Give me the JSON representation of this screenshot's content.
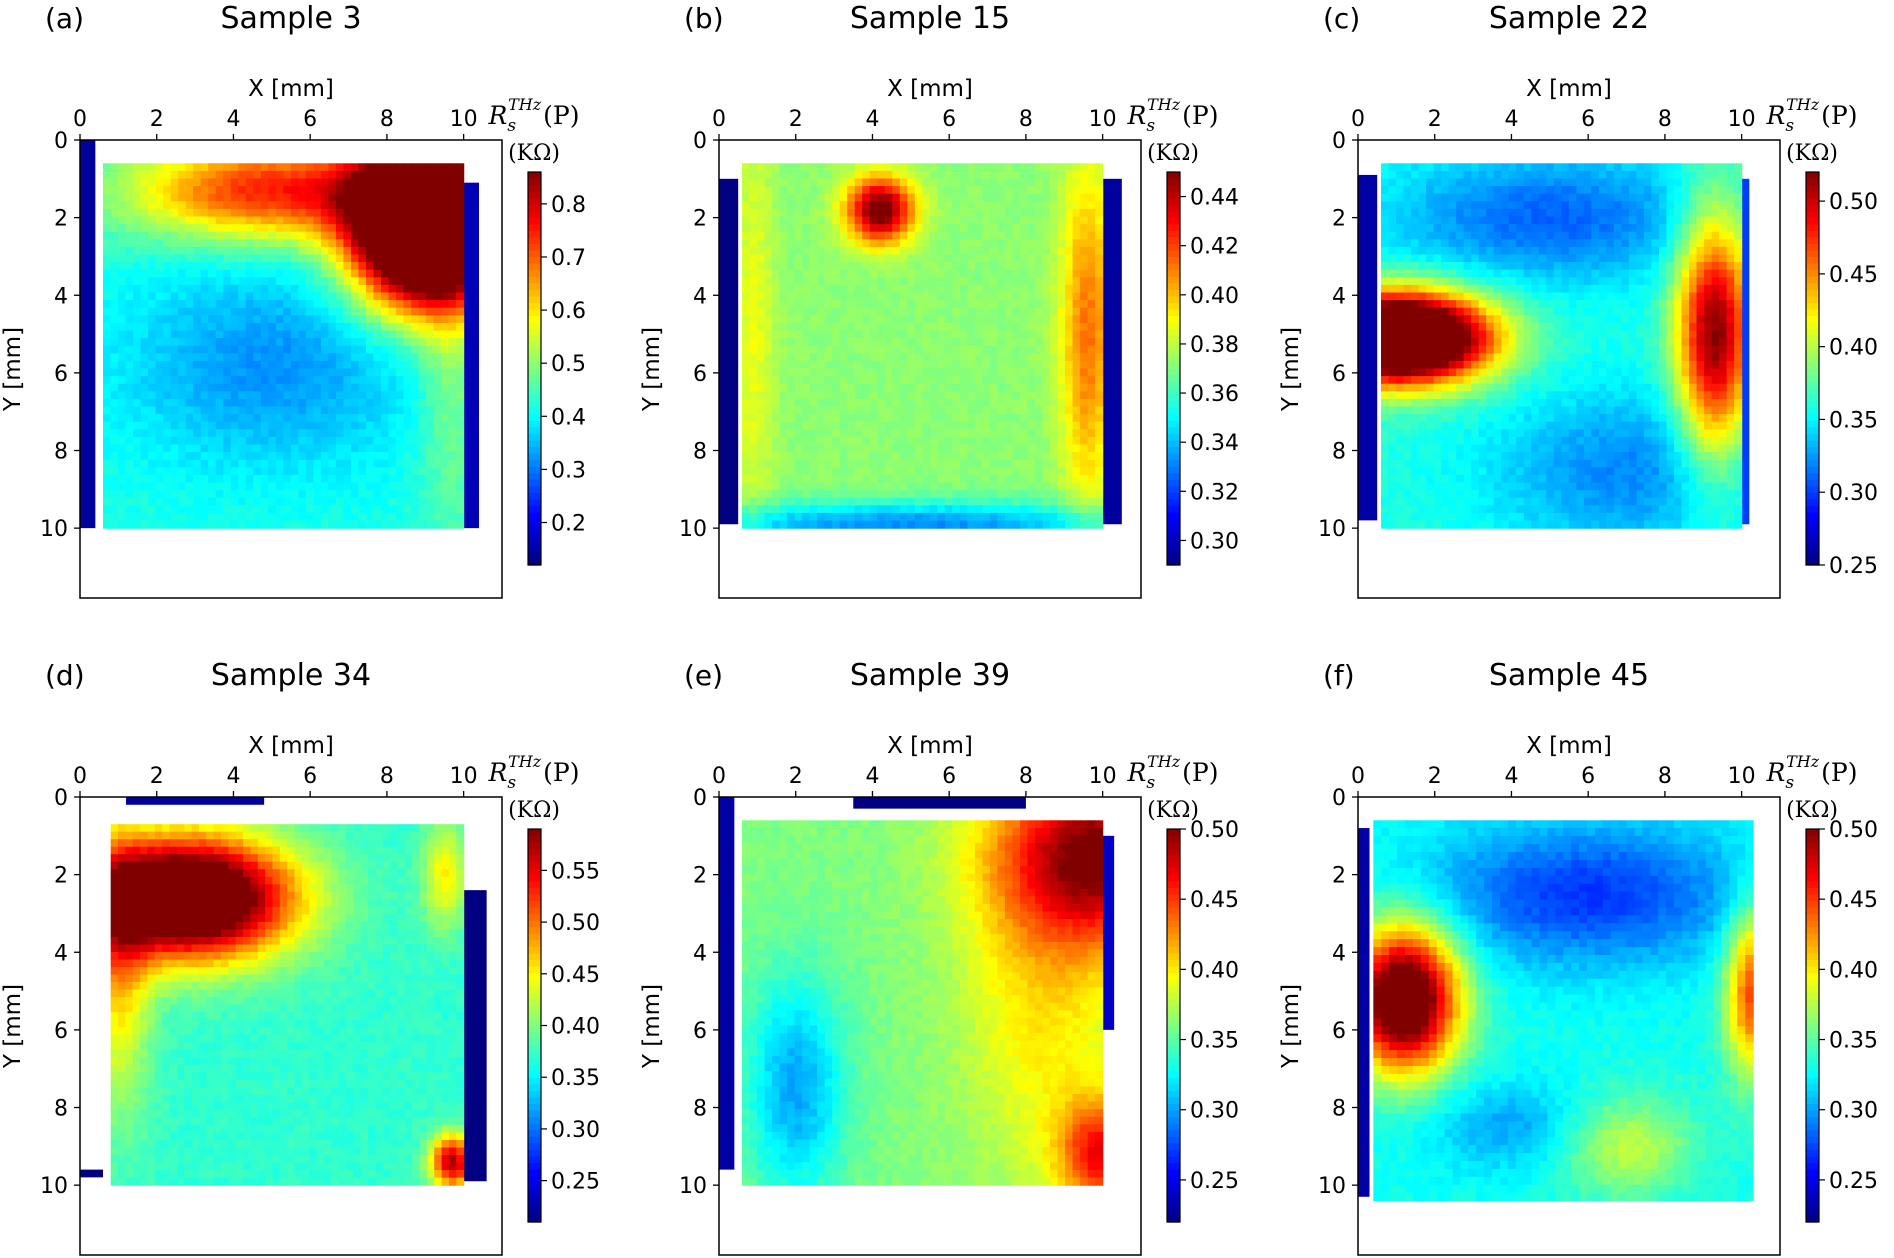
{
  "figure": {
    "x_axis_label": "X [mm]",
    "y_axis_label": "Y [mm]",
    "colorbar_symbol": "R",
    "colorbar_subscript": "s",
    "colorbar_superscript": "THz",
    "colorbar_arg": "(P)",
    "colorbar_unit": "(KΩ)"
  },
  "colormap": "jet",
  "chart_data": [
    {
      "type": "heatmap",
      "panel_label": "(a)",
      "title": "Sample 3",
      "xlabel": "X [mm]",
      "ylabel": "Y [mm]",
      "xlim": [
        0,
        11
      ],
      "ylim": [
        11.8,
        0
      ],
      "xticks": [
        "0",
        "2",
        "4",
        "6",
        "8",
        "10"
      ],
      "yticks": [
        "0",
        "2",
        "4",
        "6",
        "8",
        "10"
      ],
      "clim": [
        0.12,
        0.86
      ],
      "colorbar_ticks": [
        "0.2",
        "0.3",
        "0.4",
        "0.5",
        "0.6",
        "0.7",
        "0.8"
      ],
      "sample_extent": {
        "x": [
          0.6,
          10.0
        ],
        "y": [
          0.6,
          10.0
        ]
      },
      "edge_strips": [
        {
          "side": "left",
          "x": [
            0.0,
            0.4
          ],
          "y": [
            0.0,
            10.0
          ],
          "value": 0.14
        },
        {
          "side": "right",
          "x": [
            10.0,
            10.4
          ],
          "y": [
            1.1,
            10.0
          ],
          "value": 0.16
        }
      ],
      "base_value": 0.42,
      "features": [
        {
          "x": 9.0,
          "y": 2.2,
          "sx": 1.3,
          "sy": 1.4,
          "value": 0.95
        },
        {
          "x": 5.0,
          "y": 1.3,
          "sx": 2.6,
          "sy": 0.9,
          "value": 0.33
        },
        {
          "x": 5.0,
          "y": 5.8,
          "sx": 2.8,
          "sy": 1.9,
          "value": -0.1
        },
        {
          "x": 9.7,
          "y": 6.0,
          "sx": 0.6,
          "sy": 3.0,
          "value": 0.08
        }
      ]
    },
    {
      "type": "heatmap",
      "panel_label": "(b)",
      "title": "Sample 15",
      "xlabel": "X [mm]",
      "ylabel": "Y [mm]",
      "xlim": [
        0,
        11
      ],
      "ylim": [
        11.8,
        0
      ],
      "xticks": [
        "0",
        "2",
        "4",
        "6",
        "8",
        "10"
      ],
      "yticks": [
        "0",
        "2",
        "4",
        "6",
        "8",
        "10"
      ],
      "clim": [
        0.29,
        0.45
      ],
      "colorbar_ticks": [
        "0.30",
        "0.32",
        "0.34",
        "0.36",
        "0.38",
        "0.40",
        "0.42",
        "0.44"
      ],
      "sample_extent": {
        "x": [
          0.6,
          10.0
        ],
        "y": [
          0.6,
          10.0
        ]
      },
      "edge_strips": [
        {
          "side": "left",
          "x": [
            0.0,
            0.5
          ],
          "y": [
            1.0,
            9.9
          ],
          "value": 0.29
        },
        {
          "side": "right",
          "x": [
            10.0,
            10.5
          ],
          "y": [
            1.0,
            9.9
          ],
          "value": 0.295
        }
      ],
      "base_value": 0.372,
      "features": [
        {
          "x": 4.2,
          "y": 1.8,
          "sx": 0.6,
          "sy": 0.6,
          "value": 0.085
        },
        {
          "x": 9.6,
          "y": 5.0,
          "sx": 0.5,
          "sy": 3.0,
          "value": 0.04
        },
        {
          "x": 0.9,
          "y": 5.0,
          "sx": 0.4,
          "sy": 4.0,
          "value": 0.015
        },
        {
          "x": 5.0,
          "y": 9.9,
          "sx": 4.5,
          "sy": 0.4,
          "value": -0.04
        }
      ]
    },
    {
      "type": "heatmap",
      "panel_label": "(c)",
      "title": "Sample 22",
      "xlabel": "X [mm]",
      "ylabel": "Y [mm]",
      "xlim": [
        0,
        11
      ],
      "ylim": [
        11.8,
        0
      ],
      "xticks": [
        "0",
        "2",
        "4",
        "6",
        "8",
        "10"
      ],
      "yticks": [
        "0",
        "2",
        "4",
        "6",
        "8",
        "10"
      ],
      "clim": [
        0.25,
        0.52
      ],
      "colorbar_ticks": [
        "0.25",
        "0.30",
        "0.35",
        "0.40",
        "0.45",
        "0.50"
      ],
      "sample_extent": {
        "x": [
          0.6,
          10.0
        ],
        "y": [
          0.6,
          10.0
        ]
      },
      "edge_strips": [
        {
          "side": "left",
          "x": [
            0.0,
            0.5
          ],
          "y": [
            0.9,
            9.8
          ],
          "value": 0.26
        },
        {
          "side": "right",
          "x": [
            10.0,
            10.2
          ],
          "y": [
            1.0,
            9.9
          ],
          "value": 0.3
        }
      ],
      "base_value": 0.36,
      "features": [
        {
          "x": 1.1,
          "y": 5.1,
          "sx": 1.6,
          "sy": 0.8,
          "value": 0.3
        },
        {
          "x": 9.3,
          "y": 5.0,
          "sx": 0.7,
          "sy": 2.2,
          "value": 0.16
        },
        {
          "x": 5.0,
          "y": 2.0,
          "sx": 3.0,
          "sy": 1.2,
          "value": -0.05
        },
        {
          "x": 7.0,
          "y": 8.5,
          "sx": 2.5,
          "sy": 1.5,
          "value": -0.04
        }
      ]
    },
    {
      "type": "heatmap",
      "panel_label": "(d)",
      "title": "Sample 34",
      "xlabel": "X [mm]",
      "ylabel": "Y [mm]",
      "xlim": [
        0,
        11
      ],
      "ylim": [
        11.8,
        0
      ],
      "xticks": [
        "0",
        "2",
        "4",
        "6",
        "8",
        "10"
      ],
      "yticks": [
        "0",
        "2",
        "4",
        "6",
        "8",
        "10"
      ],
      "clim": [
        0.21,
        0.59
      ],
      "colorbar_ticks": [
        "0.25",
        "0.30",
        "0.35",
        "0.40",
        "0.45",
        "0.50",
        "0.55"
      ],
      "sample_extent": {
        "x": [
          0.8,
          10.0
        ],
        "y": [
          0.7,
          10.0
        ]
      },
      "edge_strips": [
        {
          "side": "top",
          "x": [
            1.2,
            4.8
          ],
          "y": [
            0.0,
            0.2
          ],
          "value": 0.22
        },
        {
          "side": "right",
          "x": [
            10.0,
            10.6
          ],
          "y": [
            2.4,
            9.9
          ],
          "value": 0.21
        },
        {
          "side": "left",
          "x": [
            0.0,
            0.6
          ],
          "y": [
            9.6,
            9.8
          ],
          "value": 0.21
        }
      ],
      "base_value": 0.37,
      "features": [
        {
          "x": 2.8,
          "y": 2.6,
          "sx": 1.9,
          "sy": 1.1,
          "value": 0.33
        },
        {
          "x": 1.0,
          "y": 4.5,
          "sx": 0.6,
          "sy": 2.5,
          "value": 0.09
        },
        {
          "x": 9.7,
          "y": 9.4,
          "sx": 0.4,
          "sy": 0.5,
          "value": 0.2
        },
        {
          "x": 9.5,
          "y": 2.0,
          "sx": 0.4,
          "sy": 1.0,
          "value": 0.08
        }
      ]
    },
    {
      "type": "heatmap",
      "panel_label": "(e)",
      "title": "Sample 39",
      "xlabel": "X [mm]",
      "ylabel": "Y [mm]",
      "xlim": [
        0,
        11
      ],
      "ylim": [
        11.8,
        0
      ],
      "xticks": [
        "0",
        "2",
        "4",
        "6",
        "8",
        "10"
      ],
      "yticks": [
        "0",
        "2",
        "4",
        "6",
        "8",
        "10"
      ],
      "clim": [
        0.22,
        0.5
      ],
      "colorbar_ticks": [
        "0.25",
        "0.30",
        "0.35",
        "0.40",
        "0.45",
        "0.50"
      ],
      "sample_extent": {
        "x": [
          0.6,
          10.0
        ],
        "y": [
          0.6,
          10.0
        ]
      },
      "edge_strips": [
        {
          "side": "left",
          "x": [
            0.0,
            0.4
          ],
          "y": [
            0.0,
            9.6
          ],
          "value": 0.23
        },
        {
          "side": "top",
          "x": [
            3.5,
            8.0
          ],
          "y": [
            0.0,
            0.3
          ],
          "value": 0.22
        },
        {
          "side": "right",
          "x": [
            10.0,
            10.3
          ],
          "y": [
            1.0,
            6.0
          ],
          "value": 0.24
        }
      ],
      "base_value": 0.36,
      "features": [
        {
          "x": 10.0,
          "y": 1.5,
          "sx": 2.0,
          "sy": 1.6,
          "value": 0.14
        },
        {
          "x": 10.0,
          "y": 9.2,
          "sx": 0.8,
          "sy": 1.0,
          "value": 0.1
        },
        {
          "x": 2.0,
          "y": 7.5,
          "sx": 0.9,
          "sy": 2.0,
          "value": -0.06
        },
        {
          "x": 8.5,
          "y": 5.5,
          "sx": 1.5,
          "sy": 3.0,
          "value": 0.04
        }
      ]
    },
    {
      "type": "heatmap",
      "panel_label": "(f)",
      "title": "Sample 45",
      "xlabel": "X [mm]",
      "ylabel": "Y [mm]",
      "xlim": [
        0,
        11
      ],
      "ylim": [
        11.8,
        0
      ],
      "xticks": [
        "0",
        "2",
        "4",
        "6",
        "8",
        "10"
      ],
      "yticks": [
        "0",
        "2",
        "4",
        "6",
        "8",
        "10"
      ],
      "clim": [
        0.22,
        0.5
      ],
      "colorbar_ticks": [
        "0.25",
        "0.30",
        "0.35",
        "0.40",
        "0.45",
        "0.50"
      ],
      "sample_extent": {
        "x": [
          0.4,
          10.3
        ],
        "y": [
          0.6,
          10.4
        ]
      },
      "edge_strips": [
        {
          "side": "left",
          "x": [
            0.0,
            0.3
          ],
          "y": [
            0.8,
            10.3
          ],
          "value": 0.23
        }
      ],
      "base_value": 0.33,
      "features": [
        {
          "x": 1.2,
          "y": 5.2,
          "sx": 1.0,
          "sy": 1.3,
          "value": 0.22
        },
        {
          "x": 6.0,
          "y": 2.5,
          "sx": 3.0,
          "sy": 1.3,
          "value": -0.06
        },
        {
          "x": 10.3,
          "y": 5.0,
          "sx": 0.5,
          "sy": 1.5,
          "value": 0.12
        },
        {
          "x": 7.0,
          "y": 9.0,
          "sx": 1.2,
          "sy": 0.9,
          "value": 0.05
        },
        {
          "x": 4.0,
          "y": 8.5,
          "sx": 1.5,
          "sy": 0.8,
          "value": -0.03
        }
      ]
    }
  ]
}
